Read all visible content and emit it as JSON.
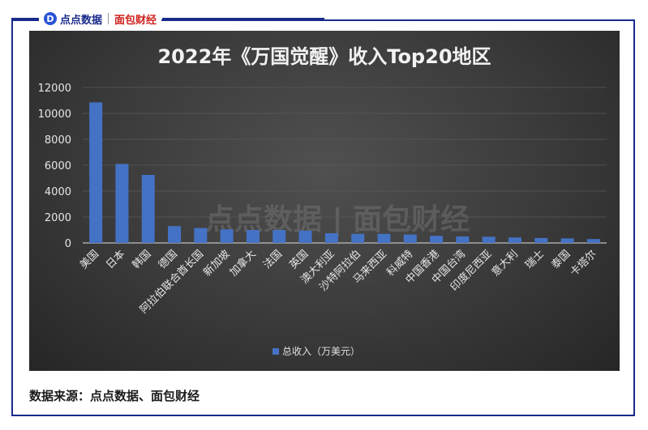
{
  "header": {
    "brand_a": "点点数据",
    "brand_b": "面包财经"
  },
  "source_note": "数据来源：点点数据、面包财经",
  "watermark": "点点数据 | 面包财经",
  "colors": {
    "bar": "#4472c4",
    "frame": "#1a2a8c",
    "brand_red": "#d0211c"
  },
  "chart_data": {
    "type": "bar",
    "title": "2022年《万国觉醒》收入Top20地区",
    "xlabel": "",
    "ylabel": "",
    "ylim": [
      0,
      12000
    ],
    "yticks": [
      0,
      2000,
      4000,
      6000,
      8000,
      10000,
      12000
    ],
    "grid": true,
    "legend_position": "bottom",
    "categories": [
      "美国",
      "日本",
      "韩国",
      "德国",
      "阿拉伯联合酋长国",
      "新加坡",
      "加拿大",
      "法国",
      "英国",
      "澳大利亚",
      "沙特阿拉伯",
      "马来西亚",
      "科威特",
      "中国香港",
      "中国台湾",
      "印度尼西亚",
      "意大利",
      "瑞士",
      "泰国",
      "卡塔尔"
    ],
    "series": [
      {
        "name": "总收入（万美元）",
        "values": [
          10850,
          6100,
          5250,
          1300,
          1150,
          1050,
          1000,
          1000,
          950,
          750,
          700,
          700,
          650,
          550,
          500,
          480,
          420,
          380,
          350,
          300
        ]
      }
    ]
  }
}
